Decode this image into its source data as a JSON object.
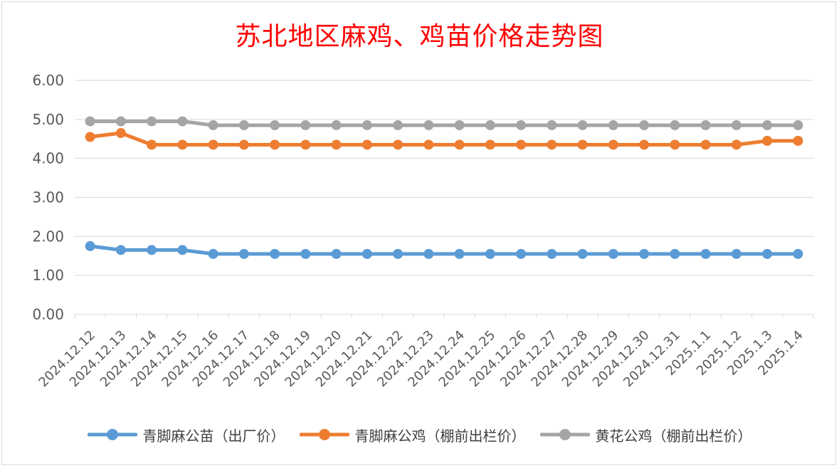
{
  "chart_data": {
    "type": "line",
    "title": "苏北地区麻鸡、鸡苗价格走势图",
    "xlabel": "",
    "ylabel": "",
    "ylim": [
      0,
      6
    ],
    "yticks": [
      "0.00",
      "1.00",
      "2.00",
      "3.00",
      "4.00",
      "5.00",
      "6.00"
    ],
    "categories": [
      "2024.12.12",
      "2024.12.13",
      "2024.12.14",
      "2024.12.15",
      "2024.12.16",
      "2024.12.17",
      "2024.12.18",
      "2024.12.19",
      "2024.12.20",
      "2024.12.21",
      "2024.12.22",
      "2024.12.23",
      "2024.12.24",
      "2024.12.25",
      "2024.12.26",
      "2024.12.27",
      "2024.12.28",
      "2024.12.29",
      "2024.12.30",
      "2024.12.31",
      "2025.1.1",
      "2025.1.2",
      "2025.1.3",
      "2025.1.4"
    ],
    "series": [
      {
        "name": "青脚麻公苗（出厂价）",
        "color": "#5b9bd5",
        "values": [
          1.75,
          1.65,
          1.65,
          1.65,
          1.55,
          1.55,
          1.55,
          1.55,
          1.55,
          1.55,
          1.55,
          1.55,
          1.55,
          1.55,
          1.55,
          1.55,
          1.55,
          1.55,
          1.55,
          1.55,
          1.55,
          1.55,
          1.55,
          1.55
        ]
      },
      {
        "name": "青脚麻公鸡（棚前出栏价）",
        "color": "#ed7d31",
        "values": [
          4.55,
          4.65,
          4.35,
          4.35,
          4.35,
          4.35,
          4.35,
          4.35,
          4.35,
          4.35,
          4.35,
          4.35,
          4.35,
          4.35,
          4.35,
          4.35,
          4.35,
          4.35,
          4.35,
          4.35,
          4.35,
          4.35,
          4.45,
          4.45
        ]
      },
      {
        "name": "黄花公鸡（棚前出栏价）",
        "color": "#a5a5a5",
        "values": [
          4.95,
          4.95,
          4.95,
          4.95,
          4.85,
          4.85,
          4.85,
          4.85,
          4.85,
          4.85,
          4.85,
          4.85,
          4.85,
          4.85,
          4.85,
          4.85,
          4.85,
          4.85,
          4.85,
          4.85,
          4.85,
          4.85,
          4.85,
          4.85
        ]
      }
    ],
    "grid": true,
    "legend_position": "bottom"
  }
}
